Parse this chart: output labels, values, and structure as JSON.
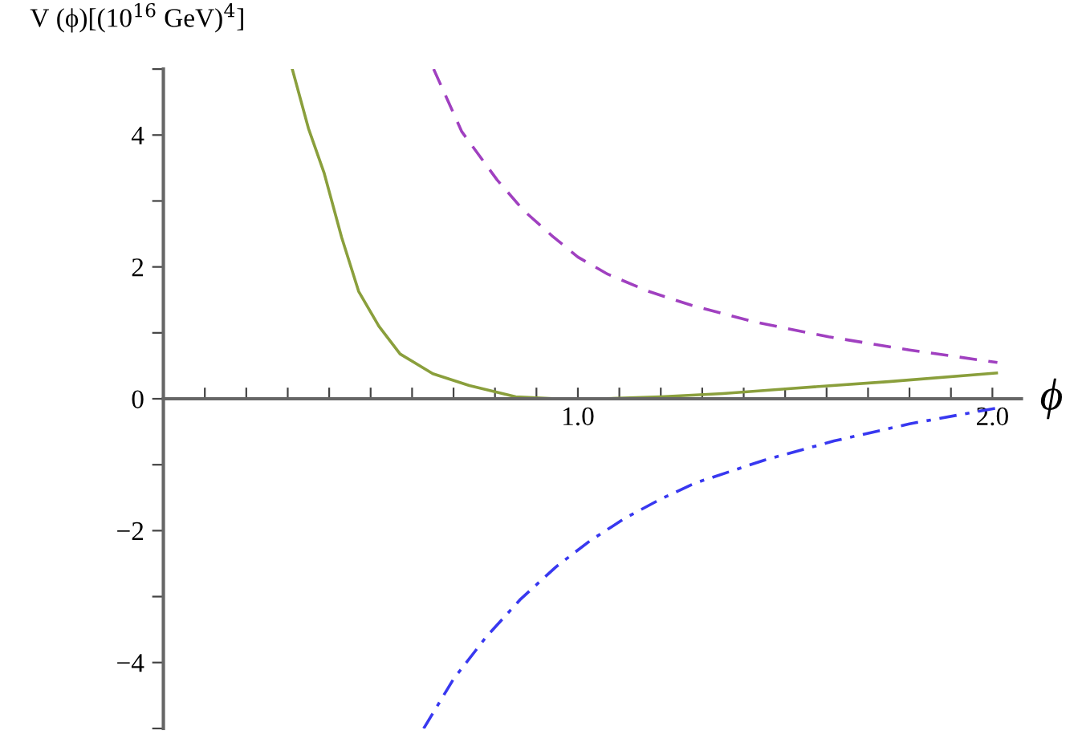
{
  "chart_data": {
    "type": "line",
    "xlabel": "ϕ",
    "ylabel": "V (ϕ)[(10$^{16}$ GeV)$^{4}$]",
    "xlim": [
      0,
      2.07
    ],
    "ylim": [
      -5,
      5
    ],
    "xticks": [
      {
        "value": 0.1,
        "label": null
      },
      {
        "value": 0.2,
        "label": null
      },
      {
        "value": 0.3,
        "label": null
      },
      {
        "value": 0.4,
        "label": null
      },
      {
        "value": 0.5,
        "label": null
      },
      {
        "value": 0.6,
        "label": null
      },
      {
        "value": 0.7,
        "label": null
      },
      {
        "value": 0.8,
        "label": null
      },
      {
        "value": 0.9,
        "label": null
      },
      {
        "value": 1.0,
        "label": "1.0"
      },
      {
        "value": 1.1,
        "label": null
      },
      {
        "value": 1.2,
        "label": null
      },
      {
        "value": 1.3,
        "label": null
      },
      {
        "value": 1.4,
        "label": null
      },
      {
        "value": 1.5,
        "label": null
      },
      {
        "value": 1.6,
        "label": null
      },
      {
        "value": 1.7,
        "label": null
      },
      {
        "value": 1.8,
        "label": null
      },
      {
        "value": 1.9,
        "label": null
      },
      {
        "value": 2.0,
        "label": "2.0"
      }
    ],
    "yticks": [
      {
        "value": -5,
        "label": null
      },
      -4,
      {
        "value": -3,
        "label": null
      },
      -2,
      {
        "value": -1,
        "label": null
      },
      0,
      {
        "value": 1,
        "label": null
      },
      2,
      {
        "value": 3,
        "label": null
      },
      4,
      {
        "value": 5,
        "label": null
      }
    ],
    "grid": false,
    "legend": false,
    "marker": "none",
    "series": [
      {
        "color": "#8a9f3c",
        "line_style": "solid",
        "x": [
          0.311,
          0.35,
          0.388,
          0.43,
          0.471,
          0.52,
          0.571,
          0.65,
          0.738,
          0.85,
          0.95,
          1.05,
          1.2,
          1.35,
          1.5,
          1.75,
          2.01
        ],
        "values": [
          5.0,
          4.1,
          3.42,
          2.45,
          1.63,
          1.1,
          0.68,
          0.38,
          0.2,
          0.03,
          0.0,
          0.0,
          0.03,
          0.08,
          0.15,
          0.26,
          0.39
        ]
      },
      {
        "color": "#a040c0",
        "line_style": "dashed",
        "x": [
          0.652,
          0.72,
          0.805,
          0.87,
          0.938,
          1.0,
          1.072,
          1.17,
          1.273,
          1.43,
          1.605,
          1.8,
          2.012
        ],
        "values": [
          5.0,
          4.05,
          3.32,
          2.85,
          2.47,
          2.15,
          1.89,
          1.63,
          1.42,
          1.16,
          0.94,
          0.74,
          0.55
        ]
      },
      {
        "color": "#3838f0",
        "line_style": "dashdot",
        "x": [
          0.628,
          0.7,
          0.779,
          0.86,
          0.947,
          1.03,
          1.114,
          1.2,
          1.282,
          1.45,
          1.618,
          1.8,
          2.02
        ],
        "values": [
          -5.0,
          -4.25,
          -3.61,
          -3.05,
          -2.55,
          -2.15,
          -1.81,
          -1.52,
          -1.28,
          -0.93,
          -0.64,
          -0.38,
          -0.13
        ]
      }
    ]
  }
}
